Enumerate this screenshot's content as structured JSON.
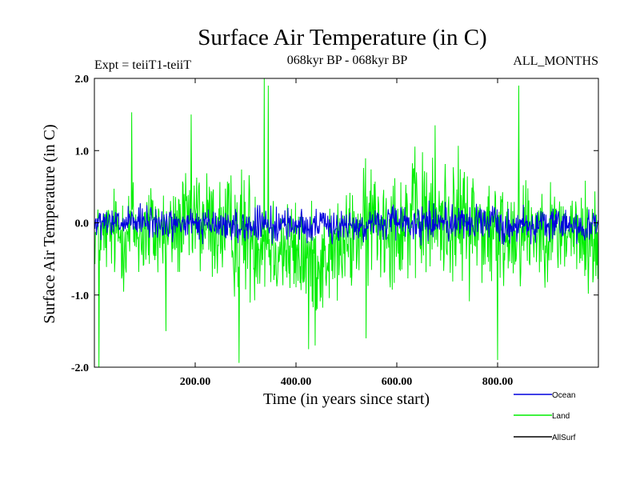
{
  "chart_data": {
    "type": "line",
    "title": "Surface Air Temperature (in C)",
    "subtitle_left": "Expt = teiiT1-teiiT",
    "subtitle_center": "068kyr BP - 068kyr BP",
    "subtitle_right": "ALL_MONTHS",
    "xlabel": "Time (in years since start)",
    "ylabel": "Surface Air Temperature (in C)",
    "xlim": [
      0,
      1000
    ],
    "ylim": [
      -2.0,
      2.0
    ],
    "x_ticks": [
      200,
      400,
      600,
      800
    ],
    "x_tick_labels": [
      "200.00",
      "400.00",
      "600.00",
      "800.00"
    ],
    "y_ticks": [
      2.0,
      1.0,
      0.0,
      -1.0,
      -2.0
    ],
    "y_tick_labels": [
      "2.0",
      "1.0",
      "0.0",
      "-1.0",
      "-2.0"
    ],
    "legend_placement": "bottom-right, below plot",
    "series": [
      {
        "name": "Land",
        "color": "#00ee00",
        "x_start": 1,
        "x_step": 1,
        "envelope_x": [
          0,
          50,
          100,
          150,
          200,
          250,
          300,
          350,
          400,
          450,
          500,
          550,
          600,
          650,
          700,
          750,
          800,
          850,
          900,
          950,
          1000
        ],
        "envelope_upper": [
          0.4,
          0.9,
          1.1,
          0.7,
          1.3,
          1.0,
          1.2,
          0.9,
          0.6,
          0.5,
          0.7,
          1.3,
          1.2,
          1.4,
          1.3,
          1.3,
          1.0,
          1.1,
          0.8,
          0.9,
          0.8
        ],
        "envelope_lower": [
          -0.8,
          -1.2,
          -1.3,
          -1.0,
          -1.2,
          -1.2,
          -1.5,
          -1.4,
          -1.5,
          -1.6,
          -1.3,
          -1.2,
          -1.2,
          -1.3,
          -1.2,
          -1.3,
          -1.4,
          -1.2,
          -1.0,
          -1.2,
          -1.4
        ],
        "spikes": [
          [
            9,
            -2.0
          ],
          [
            74,
            1.53
          ],
          [
            142,
            -1.5
          ],
          [
            192,
            1.5
          ],
          [
            287,
            -1.94
          ],
          [
            337,
            2.0
          ],
          [
            345,
            1.9
          ],
          [
            425,
            -1.75
          ],
          [
            438,
            -1.7
          ],
          [
            539,
            -1.6
          ],
          [
            676,
            1.35
          ],
          [
            800,
            -1.9
          ],
          [
            842,
            1.9
          ]
        ]
      },
      {
        "name": "Ocean",
        "color": "#0000dd",
        "x_start": 1,
        "x_step": 1,
        "envelope_x": [
          0,
          100,
          200,
          300,
          400,
          500,
          600,
          700,
          800,
          900,
          1000
        ],
        "envelope_upper": [
          0.25,
          0.35,
          0.3,
          0.3,
          0.3,
          0.25,
          0.35,
          0.4,
          0.35,
          0.3,
          0.3
        ],
        "envelope_lower": [
          -0.3,
          -0.35,
          -0.35,
          -0.4,
          -0.35,
          -0.35,
          -0.35,
          -0.35,
          -0.4,
          -0.35,
          -0.4
        ]
      },
      {
        "name": "AllSurf",
        "color": "#000000"
      }
    ]
  }
}
